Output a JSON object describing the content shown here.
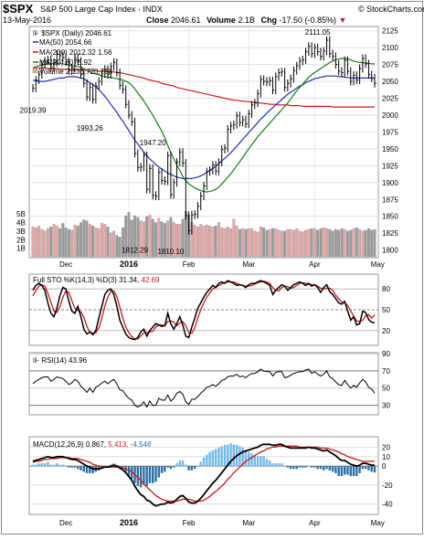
{
  "header": {
    "symbol": "$SPX",
    "name": "S&P 500 Large Cap Index",
    "exchange": "INDX",
    "date": "13-May-2016",
    "close_label": "Close",
    "close_value": "2046.61",
    "volume_label": "Volume",
    "volume_value": "2.1B",
    "chg_label": "Chg",
    "chg_value": "-17.50 (-0.85%)",
    "chg_arrow": "▼",
    "credit": "© StockCharts.com"
  },
  "colors": {
    "price": "#000000",
    "ma50": "#1f2fb0",
    "ma200": "#cc1a1a",
    "ma20": "#1a7a1a",
    "vol_up": "#e9a7a7",
    "vol_down": "#9b9b9b",
    "sto_k": "#000000",
    "sto_d": "#cc1a1a",
    "macd": "#000000",
    "signal": "#cc1a1a",
    "hist_up": "#6fb9e8",
    "hist_down": "#2a6fa8"
  },
  "chart_data": [
    {
      "type": "line",
      "panel": "price",
      "title": "$SPX (Daily) 2046.61",
      "legend": {
        "ma50": "MA(50) 2054.66",
        "ma200": "MA(200) 2012.32 1.56",
        "ma20": "MA(20) 2075.92",
        "volume": "Volume 2,136,720,768"
      },
      "y_ticks": [
        1800,
        1825,
        1850,
        1875,
        1900,
        1925,
        1950,
        1975,
        2000,
        2025,
        2050,
        2075,
        2100,
        2125
      ],
      "ylim": [
        1790,
        2130
      ],
      "volume_ticks": [
        "5B",
        "4B",
        "3B",
        "2B",
        "1B"
      ],
      "volume_tick_values": [
        5,
        4,
        3,
        2,
        1
      ],
      "volume_max": 8.0,
      "x_labels": [
        "Dec",
        "2016",
        "Feb",
        "Mar",
        "Apr",
        "May"
      ],
      "x_label_index": [
        11,
        32,
        52,
        72,
        94,
        115
      ],
      "annotations": [
        {
          "text": "2019.39",
          "index": 0,
          "value": 2019.39,
          "pos": "below"
        },
        {
          "text": "1993.26",
          "index": 19,
          "value": 1993.26,
          "pos": "below"
        },
        {
          "text": "1947.20",
          "index": 40,
          "value": 1947.2,
          "pos": "above"
        },
        {
          "text": "1812.29",
          "index": 34,
          "value": 1812.29,
          "pos": "below"
        },
        {
          "text": "1810.10",
          "index": 46,
          "value": 1810.1,
          "pos": "below"
        },
        {
          "text": "2111.05",
          "index": 95,
          "value": 2111.05,
          "pos": "above"
        }
      ],
      "close": [
        2040,
        2052,
        2060,
        2075,
        2080,
        2082,
        2070,
        2078,
        2090,
        2088,
        2085,
        2079,
        2066,
        2070,
        2085,
        2080,
        2060,
        2047,
        2027,
        2041,
        2023,
        2043,
        2050,
        2061,
        2068,
        2060,
        2072,
        2078,
        2063,
        2044,
        2038,
        2016,
        2000,
        1990,
        1943,
        1922,
        1923,
        1940,
        1890,
        1921,
        1881,
        1880,
        1915,
        1903,
        1902,
        1940,
        1882,
        1900,
        1930,
        1945,
        1929,
        1851,
        1829,
        1852,
        1853,
        1865,
        1880,
        1895,
        1916,
        1918,
        1926,
        1917,
        1930,
        1949,
        1951,
        1979,
        1984,
        1986,
        1999,
        1989,
        1993,
        1987,
        2002,
        2015,
        2018,
        2032,
        2053,
        2050,
        2049,
        2051,
        2037,
        2057,
        2063,
        2064,
        2041,
        2047,
        2054,
        2066,
        2073,
        2080,
        2082,
        2094,
        2102,
        2091,
        2100,
        2094,
        2087,
        2095,
        2111,
        2091,
        2087,
        2075,
        2065,
        2063,
        2081,
        2065,
        2050,
        2059,
        2052,
        2069,
        2084,
        2076,
        2060,
        2055,
        2047
      ],
      "ma50": [
        2052,
        2051,
        2050,
        2050,
        2050,
        2051,
        2052,
        2053,
        2054,
        2055,
        2055,
        2056,
        2057,
        2057,
        2057,
        2056,
        2055,
        2054,
        2051,
        2048,
        2045,
        2042,
        2038,
        2033,
        2028,
        2022,
        2016,
        2010,
        2004,
        1997,
        1991,
        1984,
        1977,
        1970,
        1963,
        1957,
        1951,
        1945,
        1940,
        1935,
        1931,
        1927,
        1923,
        1920,
        1917,
        1914,
        1912,
        1910,
        1908,
        1907,
        1906,
        1906,
        1906,
        1906,
        1907,
        1908,
        1910,
        1912,
        1915,
        1918,
        1921,
        1924,
        1928,
        1932,
        1936,
        1940,
        1944,
        1949,
        1954,
        1959,
        1964,
        1969,
        1974,
        1979,
        1984,
        1989,
        1994,
        1998,
        2003,
        2007,
        2011,
        2015,
        2019,
        2023,
        2027,
        2031,
        2034,
        2037,
        2040,
        2043,
        2045,
        2048,
        2050,
        2052,
        2054,
        2055,
        2056,
        2057,
        2058,
        2058,
        2058,
        2058,
        2057,
        2057,
        2056,
        2056,
        2055,
        2055,
        2055,
        2055,
        2055,
        2055,
        2055,
        2055,
        2054
      ],
      "ma200": [
        2070,
        2070,
        2070,
        2070,
        2070,
        2069,
        2069,
        2069,
        2069,
        2068,
        2068,
        2068,
        2068,
        2067,
        2067,
        2067,
        2067,
        2067,
        2066,
        2066,
        2066,
        2066,
        2065,
        2065,
        2065,
        2064,
        2064,
        2064,
        2063,
        2063,
        2062,
        2061,
        2060,
        2059,
        2058,
        2057,
        2056,
        2055,
        2053,
        2052,
        2051,
        2050,
        2049,
        2047,
        2046,
        2045,
        2044,
        2043,
        2041,
        2040,
        2039,
        2038,
        2037,
        2036,
        2035,
        2034,
        2033,
        2032,
        2031,
        2030,
        2029,
        2028,
        2027,
        2026,
        2025,
        2024,
        2023,
        2022,
        2022,
        2021,
        2021,
        2020,
        2020,
        2019,
        2019,
        2018,
        2018,
        2017,
        2017,
        2016,
        2016,
        2016,
        2015,
        2015,
        2015,
        2015,
        2014,
        2014,
        2014,
        2014,
        2013,
        2013,
        2013,
        2013,
        2013,
        2013,
        2013,
        2013,
        2013,
        2013,
        2012,
        2012,
        2012,
        2012,
        2012,
        2012,
        2012,
        2012,
        2012,
        2012,
        2012,
        2012,
        2012,
        2012,
        2012
      ],
      "ma20": [
        2070,
        2072,
        2073,
        2074,
        2075,
        2076,
        2076,
        2077,
        2077,
        2077,
        2076,
        2075,
        2074,
        2073,
        2073,
        2072,
        2071,
        2069,
        2066,
        2064,
        2062,
        2061,
        2060,
        2058,
        2057,
        2056,
        2056,
        2055,
        2054,
        2053,
        2052,
        2050,
        2048,
        2044,
        2039,
        2033,
        2027,
        2021,
        2014,
        2007,
        2000,
        1992,
        1984,
        1976,
        1966,
        1955,
        1945,
        1935,
        1926,
        1918,
        1909,
        1903,
        1898,
        1895,
        1892,
        1890,
        1888,
        1887,
        1886,
        1887,
        1888,
        1890,
        1893,
        1898,
        1903,
        1908,
        1913,
        1919,
        1925,
        1931,
        1937,
        1944,
        1950,
        1956,
        1962,
        1968,
        1973,
        1978,
        1983,
        1988,
        1993,
        1998,
        2003,
        2008,
        2013,
        2018,
        2024,
        2030,
        2036,
        2041,
        2046,
        2051,
        2056,
        2060,
        2063,
        2066,
        2069,
        2072,
        2075,
        2078,
        2080,
        2082,
        2083,
        2084,
        2084,
        2083,
        2082,
        2080,
        2079,
        2078,
        2078,
        2077,
        2077,
        2076,
        2076
      ],
      "volume": [
        3.5,
        3.4,
        3.6,
        3.2,
        3.0,
        3.3,
        3.5,
        3.8,
        3.6,
        3.3,
        3.9,
        3.4,
        3.2,
        3.1,
        3.7,
        3.6,
        4.0,
        4.3,
        4.2,
        3.8,
        3.6,
        3.4,
        3.3,
        3.9,
        3.8,
        3.5,
        2.8,
        3.0,
        2.5,
        2.3,
        3.4,
        4.8,
        5.2,
        4.3,
        4.8,
        4.6,
        4.2,
        4.1,
        4.7,
        4.9,
        4.4,
        4.0,
        4.5,
        4.1,
        3.9,
        4.2,
        4.6,
        4.0,
        3.8,
        3.8,
        4.4,
        5.3,
        4.9,
        4.0,
        3.7,
        3.5,
        3.8,
        3.6,
        3.7,
        3.6,
        3.5,
        3.6,
        4.0,
        3.4,
        3.3,
        3.5,
        3.3,
        4.4,
        3.6,
        3.2,
        3.3,
        3.2,
        3.3,
        3.3,
        3.0,
        2.9,
        3.5,
        3.4,
        3.1,
        3.2,
        3.3,
        3.3,
        3.1,
        3.0,
        3.0,
        3.2,
        3.2,
        3.1,
        3.3,
        3.0,
        2.9,
        3.1,
        3.2,
        3.3,
        3.3,
        3.1,
        3.3,
        3.4,
        3.3,
        3.2,
        3.0,
        3.2,
        3.1,
        3.3,
        3.2,
        3.0,
        3.1,
        3.3,
        3.4,
        3.2,
        3.0,
        3.1,
        3.3,
        3.1,
        3.2
      ]
    },
    {
      "type": "line",
      "panel": "stochastic",
      "title": "Full STO %K(14,3) %D(3)",
      "value_k": "31.34,",
      "value_d": "42.69",
      "ylim": [
        0,
        100
      ],
      "y_ticks": [
        20,
        50,
        80
      ],
      "k": [
        78,
        85,
        88,
        85,
        78,
        60,
        45,
        40,
        52,
        70,
        82,
        80,
        62,
        48,
        45,
        55,
        40,
        22,
        15,
        18,
        14,
        20,
        38,
        55,
        72,
        78,
        80,
        72,
        55,
        35,
        25,
        15,
        10,
        8,
        7,
        10,
        18,
        22,
        12,
        20,
        25,
        30,
        28,
        26,
        27,
        45,
        30,
        22,
        30,
        40,
        28,
        12,
        10,
        25,
        38,
        52,
        60,
        68,
        75,
        80,
        85,
        82,
        88,
        90,
        88,
        92,
        90,
        88,
        85,
        86,
        85,
        82,
        86,
        88,
        88,
        90,
        92,
        90,
        88,
        85,
        72,
        78,
        82,
        86,
        84,
        78,
        82,
        86,
        88,
        90,
        88,
        85,
        88,
        84,
        86,
        82,
        75,
        82,
        86,
        76,
        72,
        66,
        60,
        58,
        62,
        48,
        35,
        40,
        28,
        30,
        48,
        46,
        36,
        32,
        31.34
      ],
      "d": [
        70,
        78,
        84,
        86,
        84,
        74,
        61,
        48,
        46,
        54,
        68,
        77,
        75,
        63,
        52,
        49,
        47,
        39,
        26,
        18,
        16,
        17,
        24,
        38,
        55,
        68,
        77,
        77,
        69,
        54,
        38,
        25,
        17,
        11,
        8,
        8,
        12,
        17,
        17,
        18,
        19,
        25,
        28,
        28,
        27,
        33,
        34,
        32,
        27,
        31,
        33,
        27,
        17,
        16,
        24,
        38,
        50,
        60,
        68,
        74,
        80,
        82,
        85,
        87,
        89,
        90,
        90,
        90,
        88,
        86,
        85,
        84,
        84,
        85,
        87,
        89,
        90,
        91,
        90,
        88,
        82,
        78,
        77,
        82,
        84,
        83,
        81,
        82,
        85,
        88,
        89,
        88,
        87,
        86,
        86,
        84,
        81,
        80,
        81,
        81,
        78,
        71,
        66,
        61,
        60,
        56,
        48,
        41,
        34,
        33,
        35,
        41,
        43,
        38,
        42.69
      ]
    },
    {
      "type": "line",
      "panel": "rsi",
      "title": "RSI(14)",
      "value": "43.96",
      "ylim": [
        20,
        90
      ],
      "y_ticks": [
        30,
        50,
        70,
        90
      ],
      "values": [
        55,
        58,
        60,
        62,
        63,
        63,
        58,
        60,
        63,
        62,
        61,
        58,
        54,
        56,
        60,
        58,
        52,
        49,
        45,
        50,
        45,
        51,
        53,
        56,
        58,
        55,
        58,
        60,
        55,
        48,
        47,
        42,
        38,
        36,
        30,
        28,
        30,
        34,
        28,
        35,
        30,
        30,
        38,
        36,
        36,
        42,
        35,
        38,
        44,
        46,
        43,
        34,
        31,
        37,
        37,
        40,
        44,
        47,
        51,
        52,
        54,
        52,
        55,
        59,
        60,
        63,
        64,
        64,
        66,
        63,
        64,
        62,
        65,
        67,
        67,
        69,
        72,
        70,
        69,
        69,
        64,
        68,
        69,
        69,
        62,
        63,
        65,
        67,
        68,
        69,
        69,
        71,
        72,
        67,
        69,
        66,
        64,
        66,
        70,
        63,
        61,
        57,
        54,
        53,
        59,
        54,
        50,
        53,
        51,
        56,
        60,
        57,
        51,
        49,
        43.96
      ]
    },
    {
      "type": "line",
      "panel": "macd",
      "title": "MACD(12,26,9)",
      "value_macd": "0.867,",
      "value_signal": "5.413,",
      "value_hist": "-4.546",
      "ylim": [
        -50,
        30
      ],
      "y_ticks": [
        -40,
        -20,
        0,
        10,
        20
      ],
      "macd": [
        5,
        6,
        7,
        8,
        9,
        10,
        9,
        9,
        10,
        10,
        10,
        9,
        8,
        7,
        7,
        6,
        4,
        2,
        0,
        -1,
        -3,
        -3,
        -3,
        -2,
        -1,
        -1,
        0,
        1,
        0,
        -2,
        -4,
        -7,
        -11,
        -15,
        -21,
        -26,
        -30,
        -32,
        -36,
        -37,
        -40,
        -42,
        -41,
        -40,
        -40,
        -38,
        -39,
        -38,
        -35,
        -32,
        -31,
        -34,
        -38,
        -39,
        -39,
        -37,
        -34,
        -30,
        -26,
        -22,
        -18,
        -15,
        -11,
        -7,
        -3,
        1,
        5,
        8,
        11,
        13,
        15,
        16,
        17,
        18,
        19,
        20,
        22,
        23,
        23,
        23,
        22,
        22,
        23,
        23,
        21,
        20,
        19,
        19,
        19,
        19,
        19,
        19,
        20,
        19,
        19,
        18,
        17,
        16,
        17,
        15,
        13,
        11,
        8,
        6,
        6,
        4,
        2,
        1,
        0,
        1,
        3,
        3,
        2,
        1,
        0.867
      ],
      "signal": [
        4,
        5,
        5,
        6,
        7,
        7,
        8,
        8,
        8,
        9,
        9,
        9,
        9,
        8,
        8,
        8,
        7,
        6,
        5,
        4,
        2,
        1,
        0,
        0,
        -1,
        -1,
        -1,
        -1,
        -1,
        -1,
        -2,
        -3,
        -4,
        -6,
        -9,
        -12,
        -15,
        -19,
        -22,
        -25,
        -28,
        -31,
        -33,
        -35,
        -36,
        -37,
        -37,
        -37,
        -37,
        -36,
        -35,
        -35,
        -35,
        -36,
        -37,
        -37,
        -37,
        -36,
        -34,
        -32,
        -29,
        -27,
        -24,
        -21,
        -18,
        -14,
        -11,
        -7,
        -4,
        -1,
        2,
        5,
        7,
        9,
        11,
        13,
        15,
        16,
        18,
        19,
        20,
        20,
        21,
        21,
        21,
        21,
        21,
        21,
        21,
        20,
        20,
        20,
        20,
        20,
        20,
        20,
        19,
        19,
        19,
        18,
        17,
        16,
        15,
        13,
        12,
        10,
        9,
        8,
        7,
        6,
        5,
        5,
        5,
        5,
        5.413
      ]
    }
  ]
}
